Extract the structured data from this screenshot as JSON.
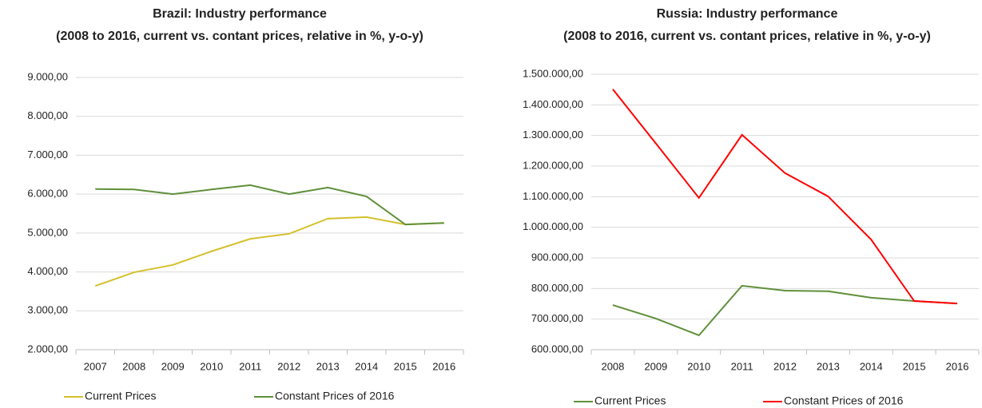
{
  "chart_data": [
    {
      "type": "line",
      "title": "Brazil:  Industry performance",
      "subtitle": "(2008 to 2016, current vs. contant prices, relative in %, y-o-y)",
      "categories": [
        "2007",
        "2008",
        "2009",
        "2010",
        "2011",
        "2012",
        "2013",
        "2014",
        "2015",
        "2016"
      ],
      "series": [
        {
          "name": "Current Prices",
          "color": "#d4c02c",
          "values": [
            3640,
            3990,
            4180,
            4530,
            4850,
            4980,
            5370,
            5410,
            5220,
            5260
          ]
        },
        {
          "name": "Constant Prices of 2016",
          "color": "#5f8f3a",
          "values": [
            6130,
            6120,
            6000,
            6120,
            6230,
            6000,
            6170,
            5940,
            5220,
            5260
          ]
        }
      ],
      "ylim": [
        2000,
        9000
      ],
      "yticks": [
        {
          "value": 2000,
          "label": "2.000,00"
        },
        {
          "value": 3000,
          "label": "3.000,00"
        },
        {
          "value": 4000,
          "label": "4.000,00"
        },
        {
          "value": 5000,
          "label": "5.000,00"
        },
        {
          "value": 6000,
          "label": "6.000,00"
        },
        {
          "value": 7000,
          "label": "7.000,00"
        },
        {
          "value": 8000,
          "label": "8.000,00"
        },
        {
          "value": 9000,
          "label": "9.000,00"
        }
      ],
      "grid": true,
      "legend": "bottom"
    },
    {
      "type": "line",
      "title": "Russia:  Industry performance",
      "subtitle": "(2008 to 2016, current vs. contant prices, relative in %, y-o-y)",
      "categories": [
        "2008",
        "2009",
        "2010",
        "2011",
        "2012",
        "2013",
        "2014",
        "2015",
        "2016"
      ],
      "series": [
        {
          "name": "Current Prices",
          "color": "#5f8f3a",
          "values": [
            746000,
            702000,
            647000,
            809000,
            793000,
            791000,
            770000,
            759000,
            751000
          ]
        },
        {
          "name": "Constant Prices of 2016",
          "color": "#ff0000",
          "values": [
            1451000,
            1274000,
            1096000,
            1302000,
            1177000,
            1101000,
            960000,
            759000,
            751000
          ]
        }
      ],
      "ylim": [
        600000,
        1500000
      ],
      "yticks": [
        {
          "value": 600000,
          "label": "600.000,00"
        },
        {
          "value": 700000,
          "label": "700.000,00"
        },
        {
          "value": 800000,
          "label": "800.000,00"
        },
        {
          "value": 900000,
          "label": "900.000,00"
        },
        {
          "value": 1000000,
          "label": "1.000.000,00"
        },
        {
          "value": 1100000,
          "label": "1.100.000,00"
        },
        {
          "value": 1200000,
          "label": "1.200.000,00"
        },
        {
          "value": 1300000,
          "label": "1.300.000,00"
        },
        {
          "value": 1400000,
          "label": "1.400.000,00"
        },
        {
          "value": 1500000,
          "label": "1.500.000,00"
        }
      ],
      "grid": true,
      "legend": "bottom"
    }
  ]
}
